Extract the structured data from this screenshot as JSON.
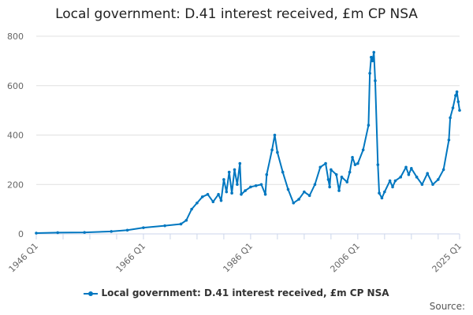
{
  "chart_data": {
    "type": "line",
    "title": "Local government: D.41 interest received, £m CP NSA",
    "xlabel": "",
    "ylabel": "",
    "ylim": [
      0,
      800
    ],
    "yticks": [
      0,
      200,
      400,
      600,
      800
    ],
    "xticks": [
      "1946 Q1",
      "1966 Q1",
      "1986 Q1",
      "2006 Q1",
      "2025 Q1"
    ],
    "xrange": [
      "1946 Q1",
      "2025 Q1"
    ],
    "grid": true,
    "legend": "bottom",
    "color": "#0077c0",
    "series": [
      {
        "name": "Local government: D.41 interest received, £m CP NSA",
        "points": [
          [
            "1946 Q1",
            3
          ],
          [
            "1950 Q1",
            5
          ],
          [
            "1955 Q1",
            6
          ],
          [
            "1960 Q1",
            10
          ],
          [
            "1963 Q1",
            15
          ],
          [
            "1966 Q1",
            25
          ],
          [
            "1970 Q1",
            33
          ],
          [
            "1973 Q1",
            40
          ],
          [
            "1974 Q1",
            55
          ],
          [
            "1975 Q1",
            100
          ],
          [
            "1976 Q1",
            125
          ],
          [
            "1977 Q1",
            150
          ],
          [
            "1978 Q1",
            160
          ],
          [
            "1979 Q1",
            130
          ],
          [
            "1980 Q1",
            160
          ],
          [
            "1980 Q3",
            135
          ],
          [
            "1981 Q1",
            220
          ],
          [
            "1981 Q3",
            170
          ],
          [
            "1982 Q1",
            250
          ],
          [
            "1982 Q3",
            165
          ],
          [
            "1983 Q1",
            260
          ],
          [
            "1983 Q3",
            200
          ],
          [
            "1984 Q1",
            285
          ],
          [
            "1984 Q2",
            160
          ],
          [
            "1985 Q1",
            175
          ],
          [
            "1986 Q1",
            190
          ],
          [
            "1987 Q1",
            195
          ],
          [
            "1988 Q1",
            200
          ],
          [
            "1988 Q4",
            160
          ],
          [
            "1989 Q1",
            240
          ],
          [
            "1990 Q1",
            340
          ],
          [
            "1990 Q3",
            400
          ],
          [
            "1991 Q1",
            330
          ],
          [
            "1992 Q1",
            250
          ],
          [
            "1993 Q1",
            180
          ],
          [
            "1994 Q1",
            125
          ],
          [
            "1995 Q1",
            140
          ],
          [
            "1996 Q1",
            170
          ],
          [
            "1997 Q1",
            155
          ],
          [
            "1998 Q1",
            200
          ],
          [
            "1999 Q1",
            270
          ],
          [
            "2000 Q1",
            285
          ],
          [
            "2000 Q3",
            220
          ],
          [
            "2000 Q4",
            190
          ],
          [
            "2001 Q1",
            260
          ],
          [
            "2002 Q1",
            240
          ],
          [
            "2002 Q3",
            175
          ],
          [
            "2003 Q1",
            230
          ],
          [
            "2004 Q1",
            210
          ],
          [
            "2004 Q3",
            250
          ],
          [
            "2005 Q1",
            310
          ],
          [
            "2005 Q3",
            280
          ],
          [
            "2006 Q1",
            285
          ],
          [
            "2007 Q1",
            340
          ],
          [
            "2008 Q1",
            440
          ],
          [
            "2008 Q2",
            650
          ],
          [
            "2008 Q3",
            715
          ],
          [
            "2008 Q4",
            700
          ],
          [
            "2009 Q1",
            735
          ],
          [
            "2009 Q2",
            620
          ],
          [
            "2009 Q4",
            280
          ],
          [
            "2010 Q1",
            165
          ],
          [
            "2010 Q3",
            145
          ],
          [
            "2011 Q1",
            170
          ],
          [
            "2012 Q1",
            215
          ],
          [
            "2012 Q3",
            190
          ],
          [
            "2013 Q1",
            215
          ],
          [
            "2014 Q1",
            230
          ],
          [
            "2015 Q1",
            270
          ],
          [
            "2015 Q3",
            240
          ],
          [
            "2016 Q1",
            265
          ],
          [
            "2017 Q1",
            230
          ],
          [
            "2018 Q1",
            200
          ],
          [
            "2019 Q1",
            245
          ],
          [
            "2020 Q1",
            200
          ],
          [
            "2021 Q1",
            220
          ],
          [
            "2022 Q1",
            260
          ],
          [
            "2023 Q1",
            380
          ],
          [
            "2023 Q2",
            470
          ],
          [
            "2023 Q4",
            510
          ],
          [
            "2024 Q2",
            560
          ],
          [
            "2024 Q3",
            575
          ],
          [
            "2024 Q4",
            535
          ],
          [
            "2025 Q1",
            500
          ]
        ]
      }
    ]
  },
  "source_label": "Source:"
}
